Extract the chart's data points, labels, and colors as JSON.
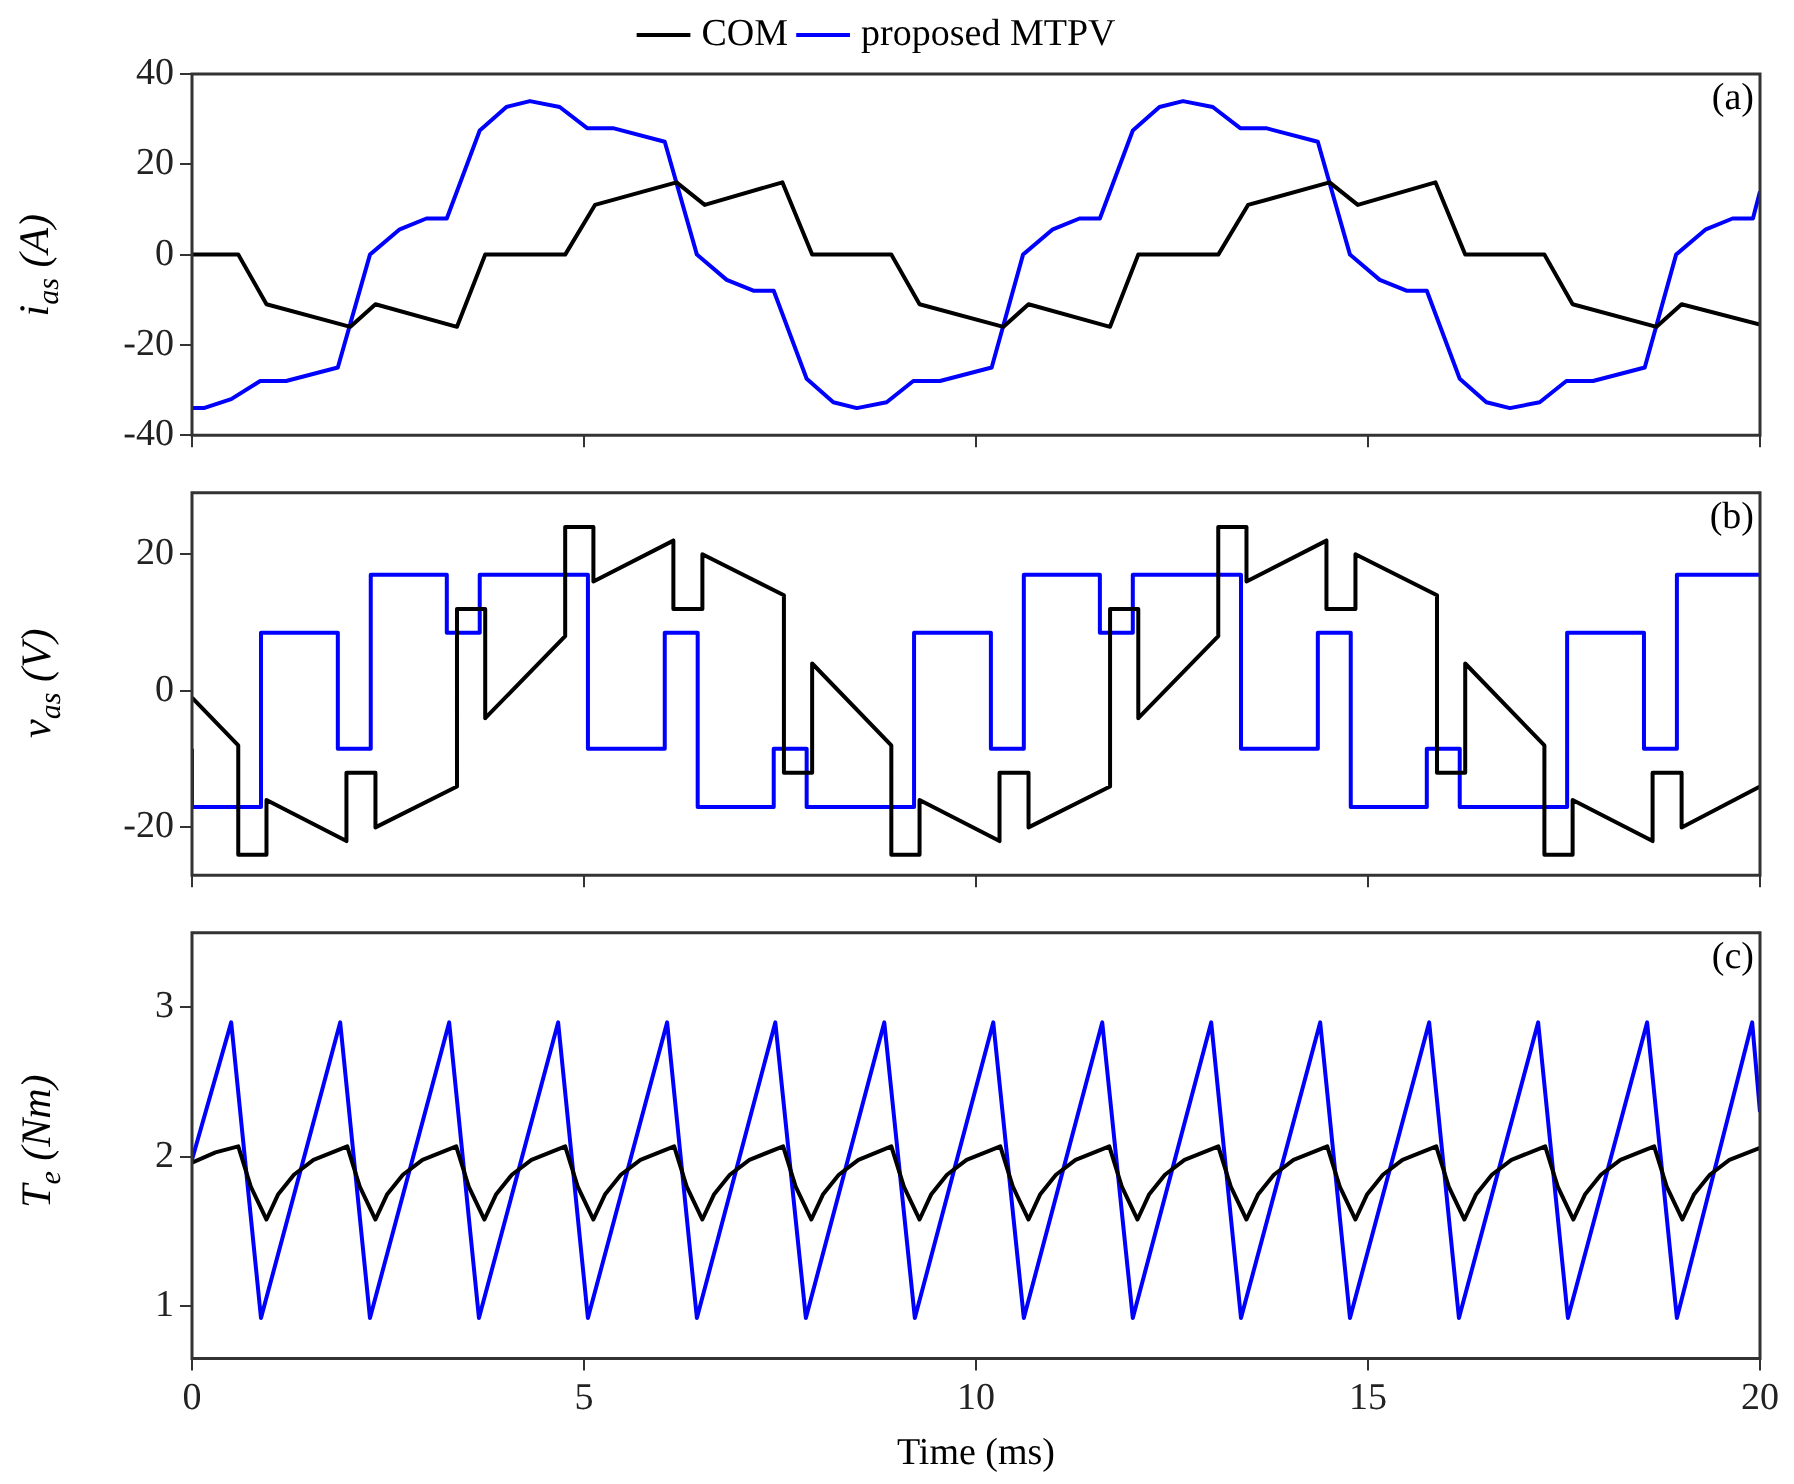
{
  "chart_data": [
    {
      "type": "line",
      "ylabel": "i$_{as}$ (A)",
      "annotations": [
        "(a)"
      ],
      "legend": "top",
      "tick_labels": "y",
      "xlim": [
        0,
        20
      ],
      "xticks": [
        0,
        5,
        10,
        15,
        20
      ],
      "ylim": [
        -40,
        40
      ],
      "yticks": [
        -40,
        -20,
        0,
        20,
        40
      ],
      "series": [
        {
          "name": "COM",
          "color": "#000000",
          "x": [
            0,
            0.59,
            0.95,
            2.02,
            2.34,
            3.38,
            3.74,
            4.76,
            5.14,
            6.18,
            6.54,
            7.53,
            7.91,
            8.92,
            9.28,
            10.35,
            10.67,
            11.71,
            12.07,
            13.09,
            13.47,
            14.51,
            14.87,
            15.86,
            16.24,
            17.25,
            17.61,
            18.68,
            19.0,
            20
          ],
          "values": [
            0,
            0,
            -11,
            -16,
            -11,
            -16,
            0,
            0,
            11,
            16,
            11,
            16,
            0,
            0,
            -11,
            -16,
            -11,
            -16,
            0,
            0,
            11,
            16,
            11,
            16,
            0,
            0,
            -11,
            -16,
            -11,
            -15.5
          ]
        },
        {
          "name": "proposed MTPV",
          "color": "#0000ff",
          "x": [
            0,
            0.15,
            0.5,
            0.87,
            1.2,
            1.86,
            2.27,
            2.65,
            2.99,
            3.25,
            3.67,
            4.01,
            4.31,
            4.69,
            5.04,
            5.37,
            6.03,
            6.44,
            6.82,
            7.16,
            7.42,
            7.84,
            8.18,
            8.48,
            8.86,
            9.2,
            9.54,
            10.2,
            10.6,
            10.98,
            11.32,
            11.58,
            12.0,
            12.34,
            12.64,
            13.02,
            13.37,
            13.7,
            14.36,
            14.77,
            15.15,
            15.49,
            15.75,
            16.17,
            16.51,
            16.81,
            17.19,
            17.53,
            17.87,
            18.53,
            18.93,
            19.31,
            19.65,
            19.91,
            20
          ],
          "values": [
            -34,
            -34,
            -32,
            -28,
            -28,
            -25,
            0,
            5.6,
            8,
            8,
            27.5,
            32.7,
            34,
            32.7,
            28,
            28,
            25,
            0,
            -5.6,
            -8,
            -8,
            -27.5,
            -32.7,
            -34,
            -32.7,
            -28,
            -28,
            -25,
            0,
            5.6,
            8,
            8,
            27.5,
            32.7,
            34,
            32.7,
            28,
            28,
            25,
            0,
            -5.6,
            -8,
            -8,
            -27.5,
            -32.7,
            -34,
            -32.7,
            -28,
            -28,
            -25,
            0,
            5.6,
            8,
            8,
            14
          ]
        }
      ]
    },
    {
      "type": "line",
      "ylabel": "v$_{as}$ (V)",
      "annotations": [
        "(b)"
      ],
      "tick_labels": "y",
      "xlim": [
        0,
        20
      ],
      "xticks": [
        0,
        5,
        10,
        15,
        20
      ],
      "ylim": [
        -27,
        29
      ],
      "yticks": [
        -20,
        0,
        20
      ],
      "series": [
        {
          "color": "#000000",
          "x": [
            0,
            0.59,
            0.59,
            0.95,
            0.95,
            1.97,
            1.97,
            2.34,
            2.34,
            3.38,
            3.38,
            3.74,
            3.74,
            4.76,
            4.76,
            5.12,
            5.12,
            6.14,
            6.14,
            6.51,
            6.51,
            7.55,
            7.55,
            7.91,
            7.91,
            8.92,
            8.92,
            9.28,
            9.28,
            10.3,
            10.3,
            10.67,
            10.67,
            11.71,
            11.71,
            12.07,
            12.07,
            13.09,
            13.09,
            13.45,
            13.45,
            14.47,
            14.47,
            14.84,
            14.84,
            15.88,
            15.88,
            16.24,
            16.24,
            17.25,
            17.25,
            17.61,
            17.61,
            18.63,
            18.63,
            19.0,
            19.0,
            20
          ],
          "values": [
            -1,
            -8,
            -24,
            -24,
            -16,
            -22,
            -12,
            -12,
            -20,
            -14,
            12,
            12,
            -4,
            8,
            24,
            24,
            16,
            22,
            12,
            12,
            20,
            14,
            -12,
            -12,
            4,
            -8,
            -24,
            -24,
            -16,
            -22,
            -12,
            -12,
            -20,
            -14,
            12,
            12,
            -4,
            8,
            24,
            24,
            16,
            22,
            12,
            12,
            20,
            14,
            -12,
            -12,
            4,
            -8,
            -24,
            -24,
            -16,
            -22,
            -12,
            -12,
            -20,
            -14
          ]
        },
        {
          "type": "step",
          "color": "#0000ff",
          "x": [
            0,
            0.88,
            1.86,
            2.28,
            3.25,
            3.67,
            5.05,
            6.03,
            6.45,
            7.42,
            7.84,
            9.21,
            10.19,
            10.61,
            11.58,
            12.0,
            13.38,
            14.36,
            14.78,
            15.75,
            16.17,
            17.54,
            18.52,
            18.94,
            19.91,
            20
          ],
          "values": [
            -8.5,
            -17,
            8.5,
            -8.5,
            17,
            8.5,
            17,
            -8.5,
            8.5,
            -17,
            -8.5,
            -17,
            8.5,
            -8.5,
            17,
            8.5,
            17,
            -8.5,
            8.5,
            -17,
            -8.5,
            -17,
            8.5,
            -8.5,
            17,
            17
          ]
        }
      ]
    },
    {
      "type": "line",
      "ylabel": "T$_{e}$ (Nm)",
      "xlabel": "Time (ms)",
      "annotations": [
        "(c)"
      ],
      "xlim": [
        0,
        20
      ],
      "xticks": [
        0,
        5,
        10,
        15,
        20
      ],
      "ylim": [
        0.65,
        3.5
      ],
      "yticks": [
        1,
        2,
        3
      ],
      "series": [
        {
          "color": "#000000",
          "x": [
            0,
            0.3,
            0.59,
            0.75,
            0.95,
            1.1,
            1.3,
            1.55,
            1.98,
            2.14,
            2.34,
            2.49,
            2.69,
            2.94,
            3.37,
            3.53,
            3.73,
            3.88,
            4.08,
            4.33,
            4.76,
            4.92,
            5.12,
            5.27,
            5.47,
            5.72,
            6.15,
            6.31,
            6.51,
            6.66,
            6.86,
            7.11,
            7.54,
            7.7,
            7.9,
            8.05,
            8.25,
            8.5,
            8.92,
            9.08,
            9.28,
            9.43,
            9.63,
            9.88,
            10.31,
            10.47,
            10.67,
            10.82,
            11.02,
            11.27,
            11.7,
            11.86,
            12.06,
            12.21,
            12.41,
            12.66,
            13.09,
            13.25,
            13.45,
            13.6,
            13.8,
            14.05,
            14.48,
            14.64,
            14.84,
            14.99,
            15.19,
            15.44,
            15.87,
            16.03,
            16.23,
            16.38,
            16.58,
            16.83,
            17.26,
            17.42,
            17.62,
            17.77,
            17.97,
            18.22,
            18.65,
            18.81,
            19.01,
            19.16,
            19.36,
            19.61,
            20
          ],
          "values": [
            1.96,
            2.03,
            2.07,
            1.8,
            1.58,
            1.75,
            1.88,
            1.98,
            2.07,
            1.8,
            1.58,
            1.75,
            1.88,
            1.98,
            2.07,
            1.8,
            1.58,
            1.75,
            1.88,
            1.98,
            2.07,
            1.8,
            1.58,
            1.75,
            1.88,
            1.98,
            2.07,
            1.8,
            1.58,
            1.75,
            1.88,
            1.98,
            2.07,
            1.8,
            1.58,
            1.75,
            1.88,
            1.98,
            2.07,
            1.8,
            1.58,
            1.75,
            1.88,
            1.98,
            2.07,
            1.8,
            1.58,
            1.75,
            1.88,
            1.98,
            2.07,
            1.8,
            1.58,
            1.75,
            1.88,
            1.98,
            2.07,
            1.8,
            1.58,
            1.75,
            1.88,
            1.98,
            2.07,
            1.8,
            1.58,
            1.75,
            1.88,
            1.98,
            2.07,
            1.8,
            1.58,
            1.75,
            1.88,
            1.98,
            2.07,
            1.8,
            1.58,
            1.75,
            1.88,
            1.98,
            2.07,
            1.8,
            1.58,
            1.75,
            1.88,
            1.98,
            2.06
          ]
        },
        {
          "color": "#0000ff",
          "x": [
            0,
            0.5,
            0.88,
            1.89,
            2.27,
            3.28,
            3.66,
            4.67,
            5.05,
            6.06,
            6.44,
            7.44,
            7.83,
            8.83,
            9.22,
            10.22,
            10.61,
            11.61,
            12.0,
            13.0,
            13.38,
            14.39,
            14.77,
            15.78,
            16.16,
            17.17,
            17.55,
            18.56,
            18.94,
            19.9,
            20
          ],
          "values": [
            1.98,
            2.9,
            0.92,
            2.9,
            0.92,
            2.9,
            0.92,
            2.9,
            0.92,
            2.9,
            0.92,
            2.9,
            0.92,
            2.9,
            0.92,
            2.9,
            0.92,
            2.9,
            0.92,
            2.9,
            0.92,
            2.9,
            0.92,
            2.9,
            0.92,
            2.9,
            0.92,
            2.9,
            0.92,
            2.9,
            2.3
          ]
        }
      ]
    }
  ]
}
